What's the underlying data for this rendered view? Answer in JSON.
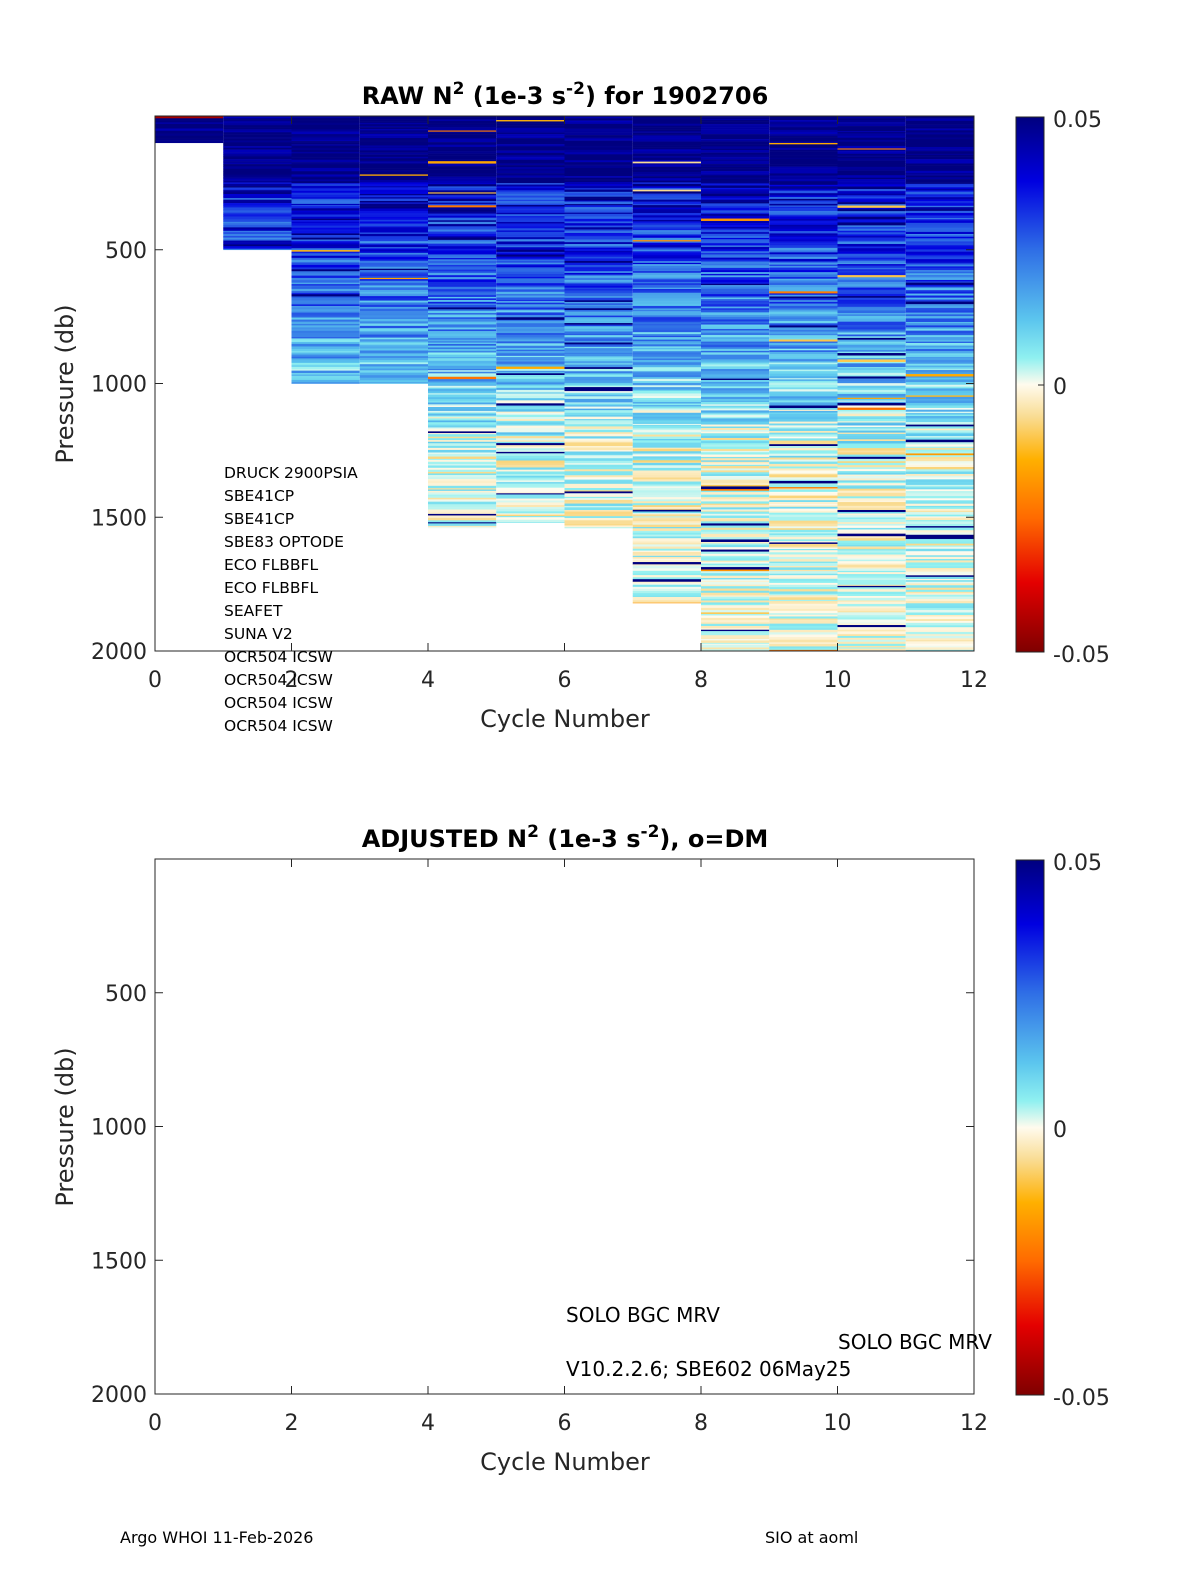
{
  "chart_data": [
    {
      "type": "heatmap",
      "title": "RAW N",
      "title_sup1": "2",
      "title_mid": " (1e-3 s",
      "title_sup2": "-2",
      "title_end": ") for 1902706",
      "xlabel": "Cycle Number",
      "ylabel": "Pressure (db)",
      "xlim": [
        0,
        12
      ],
      "ylim": [
        2000,
        0
      ],
      "xticks": [
        "0",
        "2",
        "4",
        "6",
        "8",
        "10",
        "12"
      ],
      "yticks": [
        "500",
        "1000",
        "1500",
        "2000"
      ],
      "colorbar": {
        "ticks": [
          "0.05",
          "0",
          "-0.05"
        ],
        "range": [
          -0.05,
          0.05
        ]
      },
      "columns": [
        {
          "cycle_start": 0,
          "cycle_end": 1,
          "max_pressure": 100
        },
        {
          "cycle_start": 1,
          "cycle_end": 2,
          "max_pressure": 500
        },
        {
          "cycle_start": 2,
          "cycle_end": 3,
          "max_pressure": 1000
        },
        {
          "cycle_start": 3,
          "cycle_end": 4,
          "max_pressure": 1000
        },
        {
          "cycle_start": 4,
          "cycle_end": 5,
          "max_pressure": 1540
        },
        {
          "cycle_start": 5,
          "cycle_end": 6,
          "max_pressure": 1520
        },
        {
          "cycle_start": 6,
          "cycle_end": 7,
          "max_pressure": 1540
        },
        {
          "cycle_start": 7,
          "cycle_end": 8,
          "max_pressure": 1820
        },
        {
          "cycle_start": 8,
          "cycle_end": 9,
          "max_pressure": 2000
        },
        {
          "cycle_start": 9,
          "cycle_end": 10,
          "max_pressure": 2000
        },
        {
          "cycle_start": 10,
          "cycle_end": 11,
          "max_pressure": 2000
        },
        {
          "cycle_start": 11,
          "cycle_end": 12,
          "max_pressure": 2000
        }
      ],
      "sensors": [
        "DRUCK 2900PSIA",
        "SBE41CP",
        "SBE41CP",
        "SBE83 OPTODE",
        "ECO FLBBFL",
        "ECO FLBBFL",
        "SEAFET",
        "SUNA V2",
        "OCR504 ICSW",
        "OCR504 ICSW",
        "OCR504 ICSW",
        "OCR504 ICSW"
      ]
    },
    {
      "type": "heatmap",
      "title": "ADJUSTED N",
      "title_sup1": "2",
      "title_mid": " (1e-3 s",
      "title_sup2": "-2",
      "title_end": "), o=DM",
      "xlabel": "Cycle Number",
      "ylabel": "Pressure (db)",
      "xlim": [
        0,
        12
      ],
      "ylim": [
        2000,
        0
      ],
      "xticks": [
        "0",
        "2",
        "4",
        "6",
        "8",
        "10",
        "12"
      ],
      "yticks": [
        "500",
        "1000",
        "1500",
        "2000"
      ],
      "colorbar": {
        "ticks": [
          "0.05",
          "0",
          "-0.05"
        ],
        "range": [
          -0.05,
          0.05
        ]
      },
      "columns": [],
      "notes": {
        "model": "SOLO BGC MRV",
        "firmware": "V10.2.2.6; SBE602 06May25",
        "model_large": "SOLO BGC MRV"
      }
    }
  ],
  "footer": {
    "left": "Argo WHOI 11-Feb-2026",
    "right": "SIO at aoml"
  }
}
